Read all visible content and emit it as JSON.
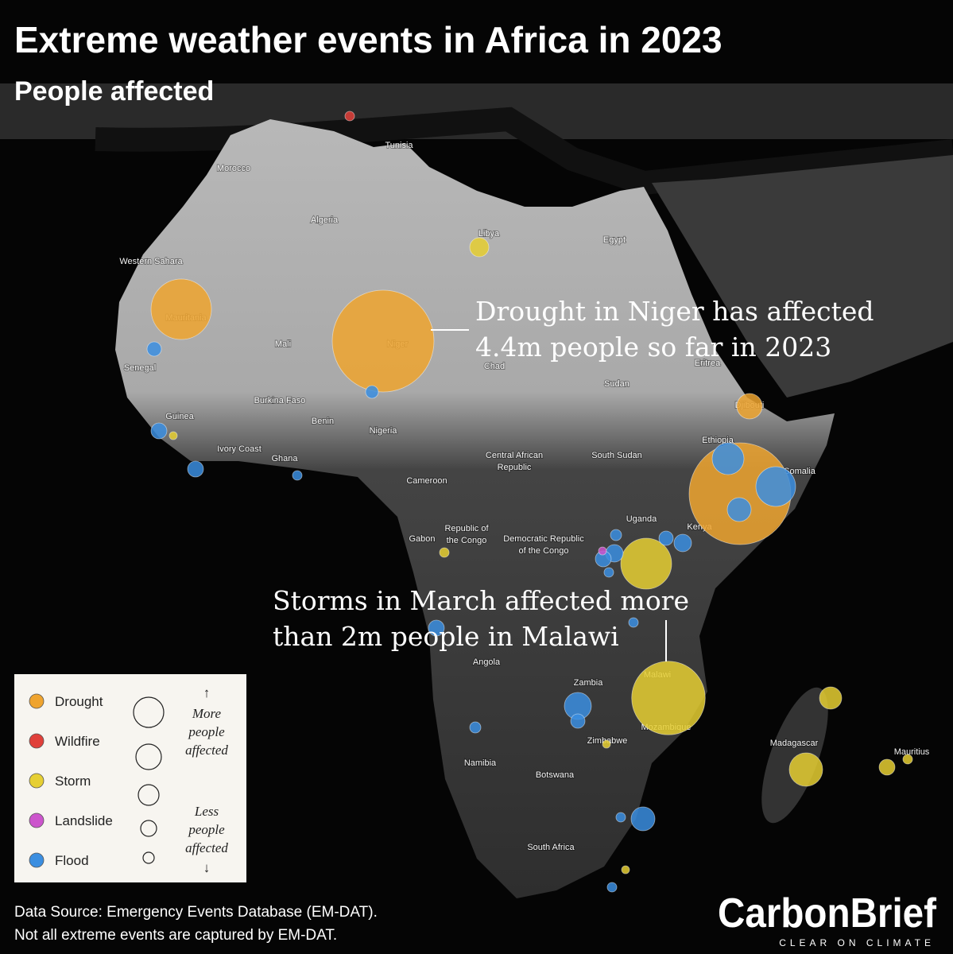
{
  "chart_data": {
    "type": "bubble-map",
    "title": "Extreme weather events in Africa in 2023",
    "subtitle": "People affected",
    "annotations": [
      [
        "Drought in Niger has affected",
        "4.4m people so far in 2023"
      ],
      [
        "Storms in March affected more",
        "than 2m people in Malawi"
      ]
    ],
    "places": [
      [
        "Tunisia"
      ],
      [
        "Morocco"
      ],
      [
        "Algeria"
      ],
      [
        "Libya"
      ],
      [
        "Egypt"
      ],
      [
        "Western Sahara"
      ],
      [
        "Mauritania"
      ],
      [
        "Mali"
      ],
      [
        "Niger"
      ],
      [
        "Chad"
      ],
      [
        "Eritrea"
      ],
      [
        "Sudan"
      ],
      [
        "Senegal"
      ],
      [
        "Burkina Faso"
      ],
      [
        "Djibouti"
      ],
      [
        "Guinea"
      ],
      [
        "Benin"
      ],
      [
        "Nigeria"
      ],
      [
        "Ethiopia"
      ],
      [
        "Ivory Coast"
      ],
      [
        "Ghana"
      ],
      [
        "Central African",
        "Republic"
      ],
      [
        "South Sudan"
      ],
      [
        "Somalia"
      ],
      [
        "Cameroon"
      ],
      [
        "Uganda"
      ],
      [
        "Kenya"
      ],
      [
        "Gabon"
      ],
      [
        "Republic of",
        "the Congo"
      ],
      [
        "Democratic Republic",
        "of the Congo"
      ],
      [
        "Angola"
      ],
      [
        "Malawi"
      ],
      [
        "Zambia"
      ],
      [
        "Mozambique"
      ],
      [
        "Zimbabwe"
      ],
      [
        "Madagascar"
      ],
      [
        "Mauritius"
      ],
      [
        "Namibia"
      ],
      [
        "Botswana"
      ],
      [
        "South Africa"
      ]
    ],
    "series": [
      {
        "name": "Drought",
        "color": "#efa42f",
        "values": [
          1550000,
          4400000,
          275000,
          4400000
        ]
      },
      {
        "name": "Wildfire",
        "color": "#e0403a",
        "values": [
          39000
        ]
      },
      {
        "name": "Storm",
        "color": "#e6cf33",
        "values": [
          155000,
          27000,
          39000,
          1100000,
          2300000,
          27000,
          210000,
          474000,
          107000,
          39000,
          27000
        ]
      },
      {
        "name": "Landslide",
        "color": "#cc55cc",
        "values": [
          27000
        ]
      },
      {
        "name": "Flood",
        "color": "#3b8ee0",
        "values": [
          87000,
          69000,
          107000,
          107000,
          39000,
          430000,
          670000,
          242000,
          130000,
          87000,
          53000,
          130000,
          107000,
          39000,
          39000,
          107000,
          310000,
          87000,
          53000,
          242000,
          39000,
          39000
        ]
      }
    ],
    "size_legend": {
      "up": "↑",
      "more": [
        "More",
        "people",
        "affected"
      ],
      "less": [
        "Less",
        "people",
        "affected"
      ],
      "down": "↓"
    },
    "source": [
      "Data Source: Emergency Events Database (EM-DAT).",
      "Not all extreme events are captured by EM-DAT."
    ],
    "logo": {
      "name": "CarbonBrief",
      "tagline": "CLEAR ON CLIMATE"
    }
  }
}
